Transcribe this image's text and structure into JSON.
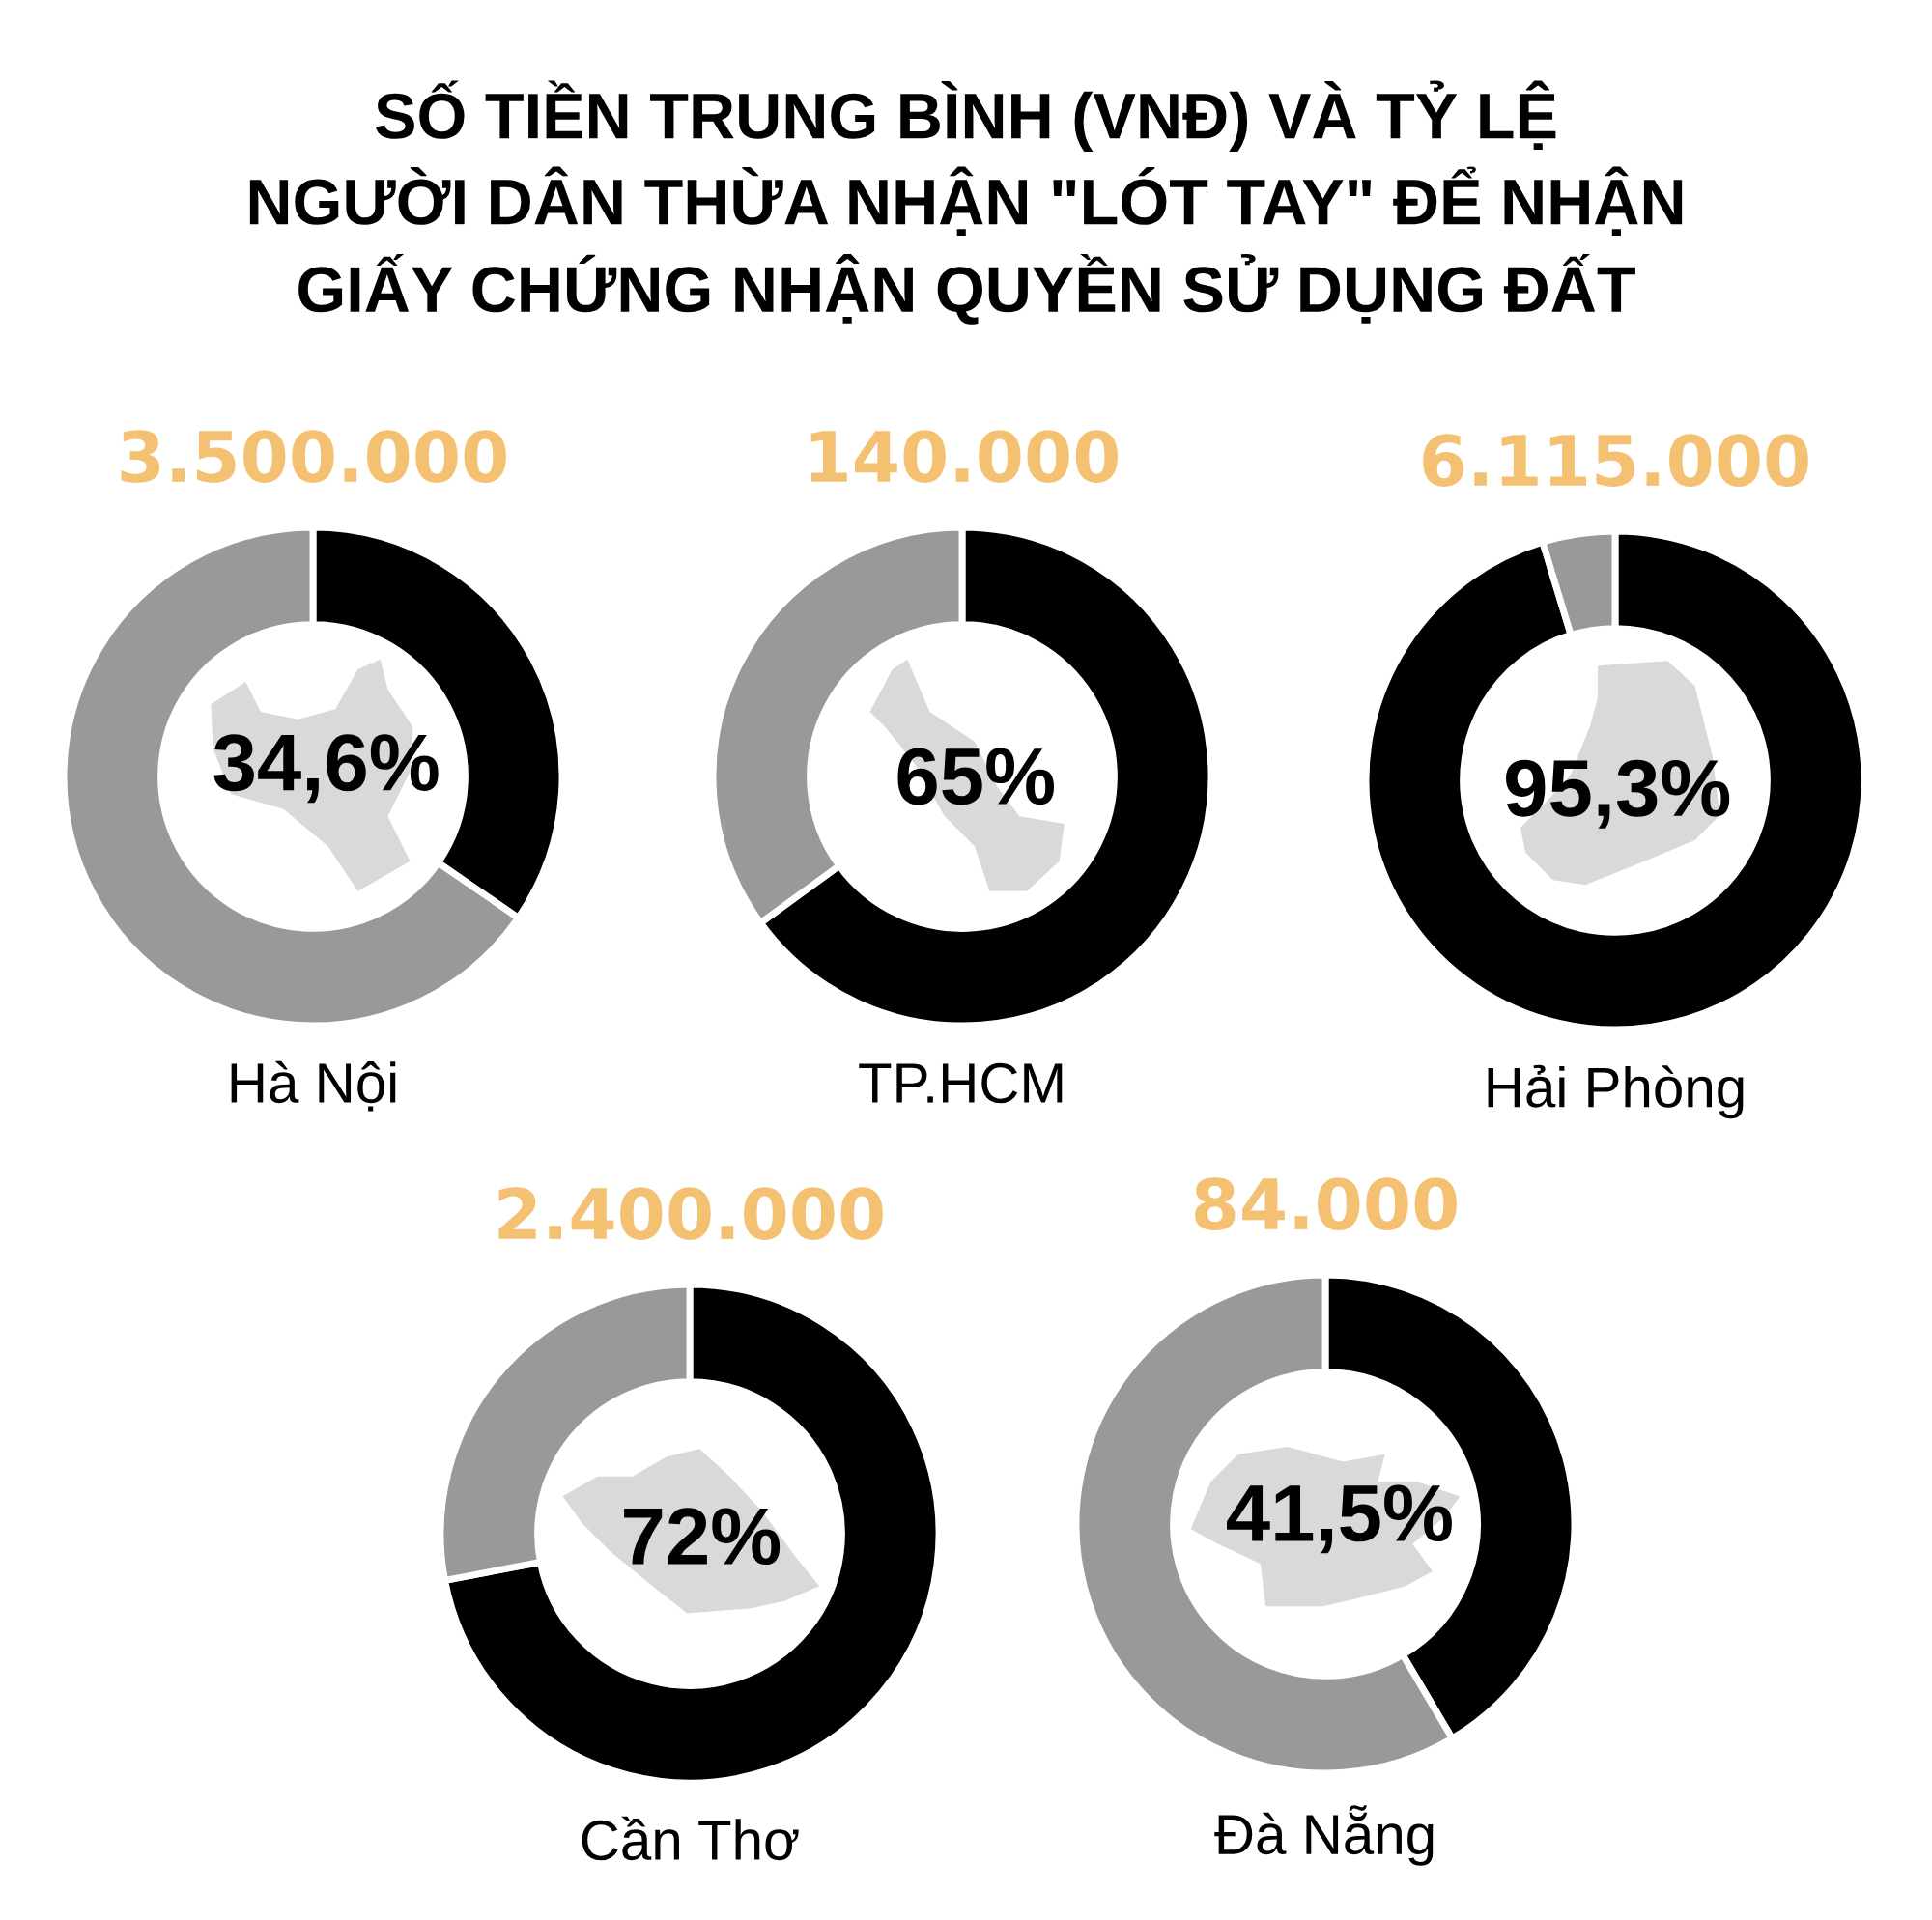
{
  "chart_data": [
    {
      "type": "donut",
      "title": "SỐ TIỀN TRUNG BÌNH (VNĐ) VÀ TỶ LỆ\nNGƯỜI DÂN THỪA NHẬN \"LÓT TAY\" ĐỂ NHẬN\nGIẤY CHỨNG NHẬN QUYỀN SỬ DỤNG ĐẤT",
      "subtitle": "3.500.000",
      "xlabel": "Hà Nội",
      "categories": [
        null,
        null
      ],
      "values": [
        34.6,
        65.4
      ],
      "colors": [
        "#000000",
        "#999999"
      ],
      "value_labels": [
        "34,6%",
        null
      ]
    },
    {
      "type": "donut",
      "subtitle": "140.000",
      "xlabel": "TP.HCM",
      "categories": [
        null,
        null
      ],
      "values": [
        65,
        35
      ],
      "colors": [
        "#000000",
        "#999999"
      ],
      "value_labels": [
        "65%",
        null
      ]
    },
    {
      "type": "donut",
      "subtitle": "6.115.000",
      "xlabel": "Hải Phòng",
      "categories": [
        null,
        null
      ],
      "values": [
        95.3,
        4.7
      ],
      "colors": [
        "#000000",
        "#999999"
      ],
      "value_labels": [
        "95,3%",
        null
      ]
    },
    {
      "type": "donut",
      "subtitle": "2.400.000",
      "xlabel": "Cần Thơ",
      "categories": [
        null,
        null
      ],
      "values": [
        72,
        28
      ],
      "colors": [
        "#000000",
        "#999999"
      ],
      "value_labels": [
        "72%",
        null
      ]
    },
    {
      "type": "donut",
      "subtitle": "84.000",
      "xlabel": "Đà Nẵng",
      "categories": [
        null,
        null
      ],
      "values": [
        41.5,
        58.5
      ],
      "colors": [
        "#000000",
        "#999999"
      ],
      "value_labels": [
        "41,5%",
        null
      ]
    }
  ]
}
